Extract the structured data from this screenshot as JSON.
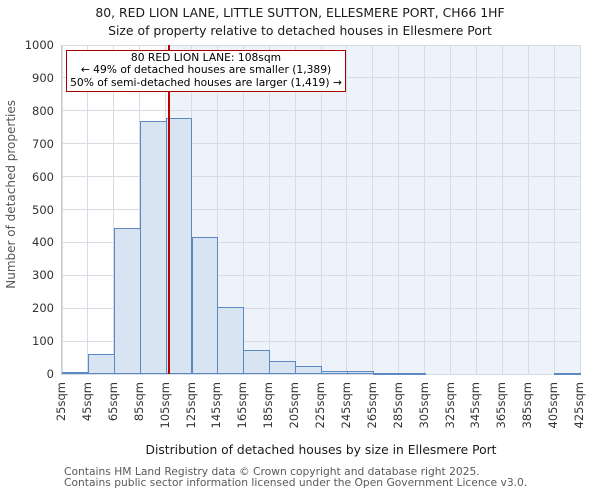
{
  "title_line1": "80, RED LION LANE, LITTLE SUTTON, ELLESMERE PORT, CH66 1HF",
  "title_line2": "Size of property relative to detached houses in Ellesmere Port",
  "annotation": {
    "line1": "80 RED LION LANE: 108sqm",
    "line2": "← 49% of detached houses are smaller (1,389)",
    "line3": "50% of semi-detached houses are larger (1,419) →"
  },
  "footer": {
    "line1": "Contains HM Land Registry data © Crown copyright and database right 2025.",
    "line2": "Contains public sector information licensed under the Open Government Licence v3.0."
  },
  "chart_data": {
    "type": "bar",
    "title": "Size of property relative to detached houses in Ellesmere Port",
    "xlabel": "Distribution of detached houses by size in Ellesmere Port",
    "ylabel": "Number of detached properties",
    "ylim": [
      0,
      1000
    ],
    "yticks": [
      0,
      100,
      200,
      300,
      400,
      500,
      600,
      700,
      800,
      900,
      1000
    ],
    "grid": true,
    "bin_start_sqm": 25,
    "bin_width_sqm": 20,
    "categories": [
      "25sqm",
      "45sqm",
      "65sqm",
      "85sqm",
      "105sqm",
      "125sqm",
      "145sqm",
      "165sqm",
      "185sqm",
      "205sqm",
      "225sqm",
      "245sqm",
      "265sqm",
      "285sqm",
      "305sqm",
      "325sqm",
      "345sqm",
      "365sqm",
      "385sqm",
      "405sqm",
      "425sqm"
    ],
    "values": [
      5,
      62,
      445,
      770,
      778,
      417,
      205,
      72,
      40,
      23,
      8,
      10,
      3,
      3,
      0,
      0,
      0,
      0,
      0,
      4
    ],
    "marker": {
      "value_sqm": 108,
      "label": "80 RED LION LANE: 108sqm",
      "smaller_pct": "49%",
      "smaller_count": "1,389",
      "larger_pct": "50%",
      "larger_count": "1,419"
    },
    "colors": {
      "bar_fill": "#d9e4f3",
      "bar_border": "#5b8ac2",
      "shade_right_of_marker": "#eef2fb",
      "marker_line": "#bb0000",
      "annotation_border": "#aa0000",
      "gridline": "#d8dce4"
    }
  }
}
